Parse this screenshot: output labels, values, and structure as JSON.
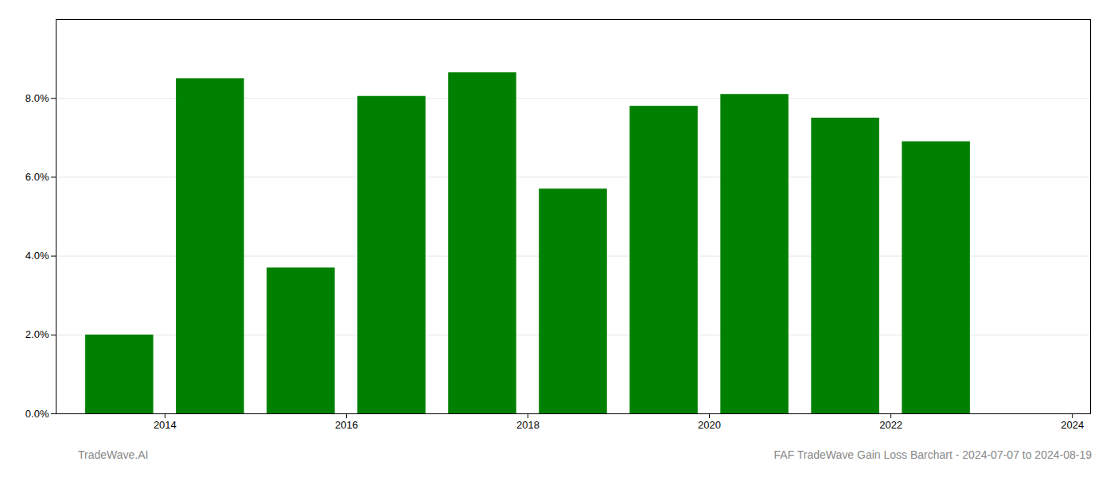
{
  "chart_data": {
    "type": "bar",
    "x": [
      2014,
      2015,
      2016,
      2017,
      2018,
      2019,
      2020,
      2021,
      2022,
      2023
    ],
    "values": [
      0.02,
      0.085,
      0.037,
      0.0805,
      0.0865,
      0.057,
      0.078,
      0.081,
      0.075,
      0.069
    ],
    "color": "#008000",
    "xlim": [
      2013.3,
      2024.7
    ],
    "xticks": [
      {
        "value": 2014.5,
        "label": "2014"
      },
      {
        "value": 2016.5,
        "label": "2016"
      },
      {
        "value": 2018.5,
        "label": "2018"
      },
      {
        "value": 2020.5,
        "label": "2020"
      },
      {
        "value": 2022.5,
        "label": "2022"
      },
      {
        "value": 2024.5,
        "label": "2024"
      }
    ],
    "ylim": [
      0,
      0.1
    ],
    "yticks": [
      {
        "value": 0.0,
        "label": "0.0%"
      },
      {
        "value": 0.02,
        "label": "2.0%"
      },
      {
        "value": 0.04,
        "label": "4.0%"
      },
      {
        "value": 0.06,
        "label": "6.0%"
      },
      {
        "value": 0.08,
        "label": "8.0%"
      }
    ],
    "grid": true,
    "annotations": [
      "TradeWave.AI",
      "FAF TradeWave Gain Loss Barchart - 2024-07-07 to 2024-08-19"
    ]
  }
}
